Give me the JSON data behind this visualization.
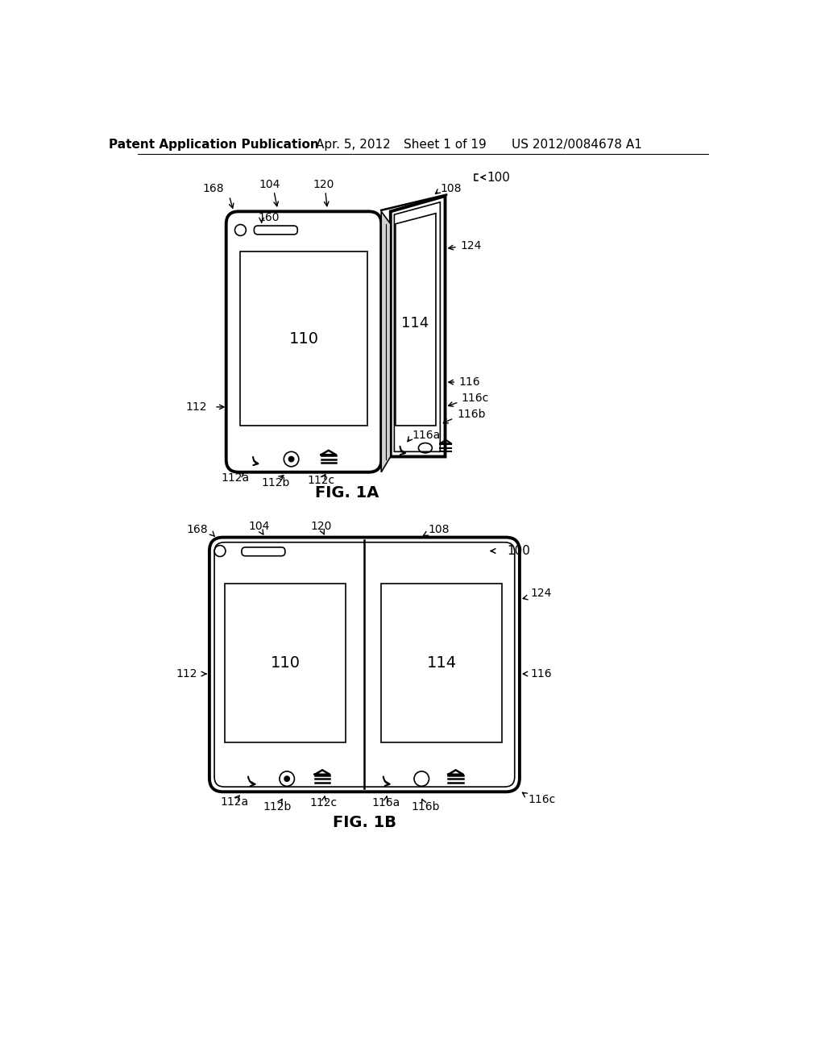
{
  "bg_color": "#ffffff",
  "line_color": "#000000",
  "header_text": "Patent Application Publication",
  "header_date": "Apr. 5, 2012",
  "header_sheet": "Sheet 1 of 19",
  "header_patent": "US 2012/0084678 A1",
  "fig1a_label": "FIG. 1A",
  "fig1b_label": "FIG. 1B",
  "label_100": "100",
  "label_104": "104",
  "label_108": "108",
  "label_110": "110",
  "label_112": "112",
  "label_112a": "112a",
  "label_112b": "112b",
  "label_112c": "112c",
  "label_114": "114",
  "label_116": "116",
  "label_116a": "116a",
  "label_116b": "116b",
  "label_116c": "116c",
  "label_120": "120",
  "label_124": "124",
  "label_160": "160",
  "label_168": "168"
}
